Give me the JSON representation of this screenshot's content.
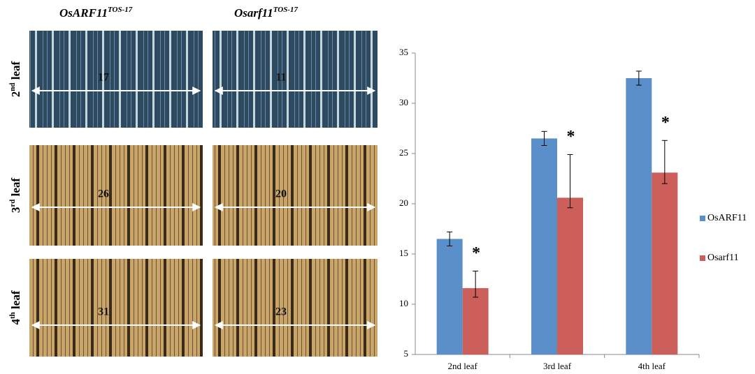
{
  "panel": {
    "columns": [
      {
        "name": "OsARF11",
        "superscript": "TOS-17"
      },
      {
        "name": "Osarf11",
        "superscript": "TOS-17"
      }
    ],
    "rows": [
      {
        "ordinal": "2",
        "suffix": "nd",
        "word": "leaf",
        "counts": [
          17,
          11
        ]
      },
      {
        "ordinal": "3",
        "suffix": "rd",
        "word": "leaf",
        "counts": [
          26,
          20
        ]
      },
      {
        "ordinal": "4",
        "suffix": "th",
        "word": "leaf",
        "counts": [
          31,
          23
        ]
      }
    ]
  },
  "chart_data": {
    "type": "bar",
    "categories": [
      "2nd leaf",
      "3rd leaf",
      "4th leaf"
    ],
    "series": [
      {
        "name": "OsARF11",
        "color": "#5b8fc9",
        "values": [
          16.5,
          26.5,
          32.5
        ],
        "error_low": [
          0.7,
          0.7,
          0.7
        ],
        "error_high": [
          0.7,
          0.7,
          0.7
        ]
      },
      {
        "name": "Osarf11",
        "color": "#cd5f5a",
        "values": [
          11.6,
          20.6,
          23.1
        ],
        "error_low": [
          0.9,
          1.0,
          1.1
        ],
        "error_high": [
          1.7,
          4.3,
          3.2
        ],
        "significance_labels": [
          "*",
          "*",
          "*"
        ]
      }
    ],
    "ylim": [
      5,
      35
    ],
    "yticks": [
      5,
      10,
      15,
      20,
      25,
      30,
      35
    ],
    "legend": "right"
  }
}
